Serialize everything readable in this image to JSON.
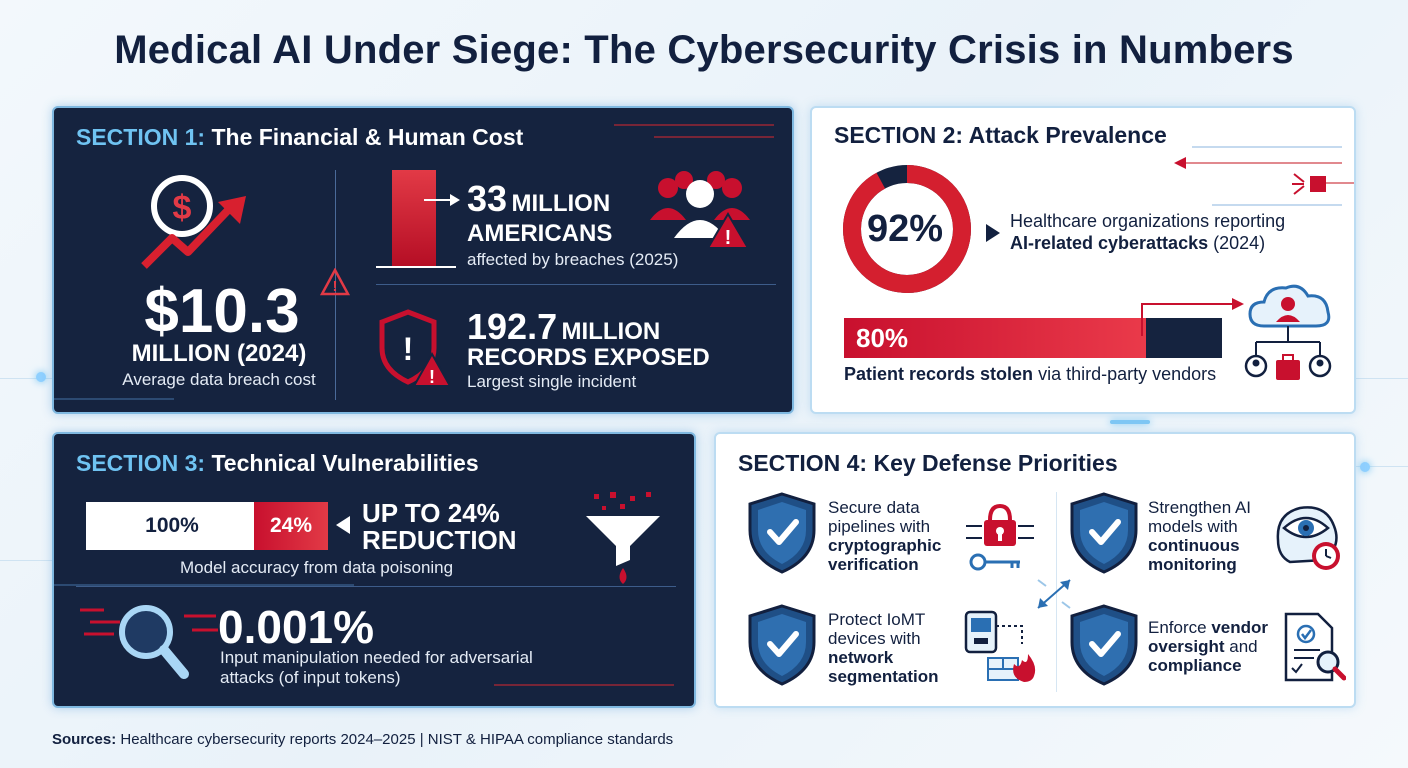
{
  "title": "Medical AI Under Siege: The Cybersecurity Crisis in Numbers",
  "colors": {
    "navy": "#15233f",
    "red": "#c8102e",
    "accent_blue": "#6fc3f2",
    "text_dark": "#12203f"
  },
  "section1": {
    "prefix": "SECTION 1:",
    "heading": "The Financial & Human Cost",
    "cost": {
      "value": "$10.3",
      "unit": "MILLION (2024)",
      "description": "Average data breach cost",
      "icon": "dollar-growth-icon"
    },
    "stat1": {
      "value": "33",
      "unit": "MILLION",
      "line2": "AMERICANS",
      "description": "affected by breaches (2025)",
      "icon": "people-warning-icon"
    },
    "stat2": {
      "value": "192.7",
      "unit": "MILLION",
      "line2": "RECORDS EXPOSED",
      "description": "Largest single incident",
      "icon": "shield-alert-icon"
    }
  },
  "section2": {
    "prefix": "SECTION 2:",
    "heading": "Attack Prevalence",
    "donut": {
      "label": "92%",
      "value": 92,
      "text_plain": "Healthcare organizations reporting",
      "text_bold": "AI-related cyberattacks",
      "text_tail": " (2024)"
    },
    "bar": {
      "label": "80%",
      "value": 80,
      "text_bold": "Patient records stolen",
      "text_tail": " via third-party vendors",
      "icon": "cloud-vendor-network-icon"
    }
  },
  "section3": {
    "prefix": "SECTION 3:",
    "heading": "Technical Vulnerabilities",
    "accuracy": {
      "full_label": "100%",
      "loss_label": "24%",
      "loss_value": 24,
      "headline_line1": "UP TO 24%",
      "headline_line2": "REDUCTION",
      "description": "Model accuracy from data poisoning",
      "icon": "funnel-poison-icon"
    },
    "manipulation": {
      "value": "0.001%",
      "description_line1": "Input manipulation needed for adversarial",
      "description_line2": "attacks (of input tokens)",
      "icon": "magnifier-icon"
    }
  },
  "section4": {
    "prefix": "SECTION 4:",
    "heading": "Key Defense Priorities",
    "items": [
      {
        "l1": "Secure data",
        "l2": "pipelines with",
        "l3": "cryptographic",
        "l4": "verification",
        "icon": "lock-key-icon"
      },
      {
        "l1": "Strengthen AI",
        "l2": "models with",
        "l3": "continuous",
        "l4": "monitoring",
        "icon": "eye-brain-clock-icon"
      },
      {
        "l1": "Protect IoMT",
        "l2": "devices with",
        "l3": "network",
        "l4": "segmentation",
        "icon": "device-firewall-icon"
      },
      {
        "l1": "Enforce",
        "l1b": "vendor",
        "l2": "oversight",
        "l2b": " and",
        "l3": "compliance",
        "icon": "document-check-icon"
      }
    ]
  },
  "sources": {
    "label": "Sources:",
    "text": " Healthcare cybersecurity reports 2024–2025 | NIST & HIPAA compliance standards"
  }
}
